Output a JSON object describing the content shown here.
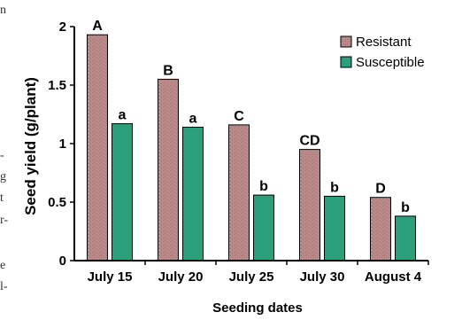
{
  "margin_fragments": [
    "n",
    "-",
    "g",
    "t",
    "r-",
    "e",
    "l-"
  ],
  "colors": {
    "resistant": "#b98585",
    "susceptible": "#2b9e7a",
    "axis": "#000000"
  },
  "chart_data": {
    "type": "bar",
    "title": "",
    "xlabel": "Seeding dates",
    "ylabel": "Seed yield (g/plant)",
    "categories": [
      "July 15",
      "July 20",
      "July 25",
      "July 30",
      "August 4"
    ],
    "ylim": [
      0,
      2
    ],
    "yticks": [
      "0",
      "0.5",
      "1",
      "1.5",
      "2"
    ],
    "grid": false,
    "legend_position": "top-right",
    "series": [
      {
        "name": "Resistant",
        "values": [
          1.93,
          1.55,
          1.16,
          0.95,
          0.54
        ],
        "labels": [
          "A",
          "B",
          "C",
          "CD",
          "D"
        ]
      },
      {
        "name": "Susceptible",
        "values": [
          1.17,
          1.14,
          0.56,
          0.55,
          0.38
        ],
        "labels": [
          "a",
          "a",
          "b",
          "b",
          "b"
        ]
      }
    ]
  }
}
